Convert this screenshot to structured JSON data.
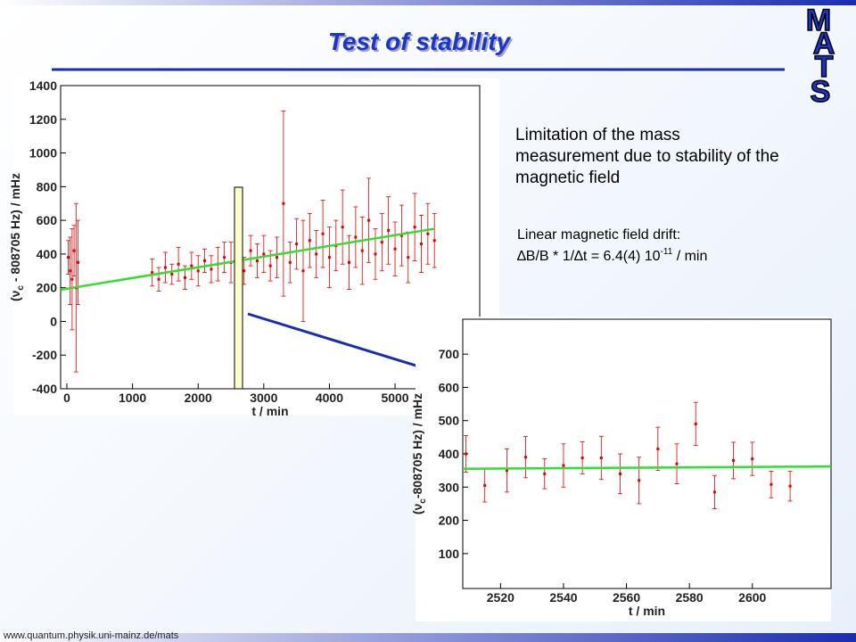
{
  "title": "Test of stability",
  "logo": [
    "M",
    "A",
    "T",
    "S"
  ],
  "text": {
    "paragraph": "Limitation of the mass measurement due to stability of the magnetic field",
    "drift_label": "Linear magnetic field drift:",
    "formula": {
      "main": "∆B/B * 1/∆t = 6.4(4) 10",
      "sup": "-11",
      "tail": " / min"
    }
  },
  "footer": "www.quantum.physik.uni-mainz.de/mats",
  "chart_data": [
    {
      "type": "scatter",
      "xlabel": "t / min",
      "ylabel": {
        "pre": "(ν",
        "sub": "c",
        "post": " - 808705 Hz) / mHz"
      },
      "xlim": [
        -95,
        6290
      ],
      "xticks": [
        0,
        1000,
        2000,
        3000,
        4000,
        5000
      ],
      "ylim": [
        -400,
        1400
      ],
      "yticks": [
        -400,
        -200,
        0,
        200,
        400,
        600,
        800,
        1000,
        1200,
        1400
      ],
      "series": [
        {
          "color": "#e00000",
          "x": [
            20,
            50,
            80,
            110,
            140,
            170,
            1300,
            1400,
            1500,
            1600,
            1700,
            1800,
            1900,
            2000,
            2100,
            2200,
            2300,
            2400,
            2500,
            2600,
            2700,
            2800,
            2900,
            3000,
            3100,
            3200,
            3300,
            3400,
            3500,
            3600,
            3700,
            3800,
            3900,
            4000,
            4100,
            4200,
            4300,
            4400,
            4500,
            4600,
            4700,
            4800,
            4900,
            5000,
            5100,
            5200,
            5300,
            5400,
            5500,
            5600
          ],
          "values": [
            380,
            300,
            250,
            420,
            200,
            350,
            290,
            250,
            320,
            280,
            340,
            260,
            330,
            300,
            360,
            310,
            340,
            380,
            350,
            390,
            300,
            420,
            360,
            400,
            330,
            380,
            700,
            350,
            460,
            300,
            480,
            400,
            520,
            380,
            450,
            560,
            350,
            500,
            420,
            600,
            400,
            470,
            540,
            430,
            510,
            380,
            560,
            460,
            520,
            480
          ],
          "errors": [
            100,
            200,
            300,
            150,
            500,
            250,
            80,
            70,
            90,
            60,
            100,
            70,
            80,
            90,
            70,
            80,
            100,
            90,
            120,
            150,
            80,
            90,
            100,
            110,
            90,
            120,
            550,
            120,
            150,
            300,
            160,
            140,
            200,
            180,
            150,
            220,
            160,
            180,
            200,
            250,
            150,
            170,
            200,
            160,
            180,
            150,
            200,
            170,
            180,
            160
          ]
        }
      ],
      "fit": {
        "color": "#33dd33",
        "x": [
          -95,
          5600
        ],
        "values": [
          188,
          550
        ]
      }
    },
    {
      "type": "scatter",
      "xlabel": "t / min",
      "ylabel": {
        "pre": "(ν",
        "sub": "c",
        "post": "-808705 Hz) / mHz"
      },
      "xlim": [
        2508,
        2625
      ],
      "xticks": [
        2520,
        2540,
        2560,
        2580,
        2600
      ],
      "ylim": [
        -5,
        805
      ],
      "yticks": [
        100,
        200,
        300,
        400,
        500,
        600,
        700
      ],
      "series": [
        {
          "color": "#e00000",
          "x": [
            2509,
            2515,
            2522,
            2528,
            2534,
            2540,
            2546,
            2552,
            2558,
            2564,
            2570,
            2576,
            2582,
            2588,
            2594,
            2600,
            2606,
            2612
          ],
          "values": [
            400,
            305,
            350,
            390,
            340,
            365,
            388,
            388,
            340,
            320,
            415,
            370,
            490,
            285,
            380,
            385,
            308,
            303
          ],
          "errors": [
            55,
            50,
            65,
            62,
            45,
            65,
            48,
            65,
            60,
            70,
            65,
            60,
            65,
            50,
            55,
            50,
            40,
            45
          ]
        }
      ],
      "fit": {
        "color": "#33dd33",
        "x": [
          2508,
          2625
        ],
        "values": [
          355,
          362
        ]
      }
    }
  ]
}
